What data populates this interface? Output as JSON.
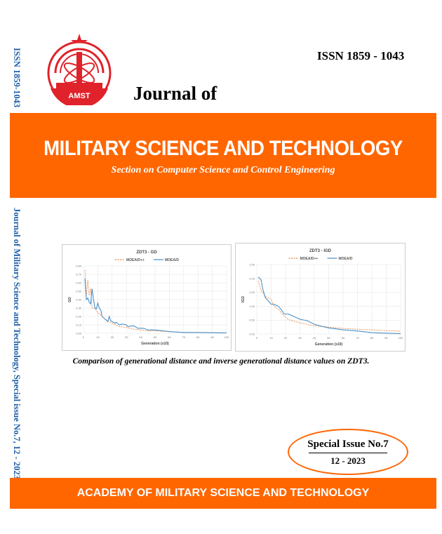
{
  "spine": {
    "issn": "ISSN 1859-1043",
    "title": "Journal of Military Science and Technology, Special issue No.7, 12 - 2023"
  },
  "logo": {
    "text": "AMST"
  },
  "header": {
    "issn": "ISSN 1859 - 1043",
    "journal_of": "Journal of"
  },
  "band": {
    "title": "MILITARY SCIENCE AND TECHNOLOGY",
    "section": "Section on Computer Science and Control Engineering"
  },
  "caption": "Comparison of generational distance and inverse generational distance values on ZDT3.",
  "issue": {
    "special": "Special Issue No.7",
    "date": "12 - 2023"
  },
  "footer": "ACADEMY OF MILITARY SCIENCE AND TECHNOLOGY",
  "colors": {
    "orange": "#ff6600",
    "blue": "#1f5fa8",
    "moead": "#4a90c8",
    "moeadpp": "#e8864a"
  },
  "chart_data": [
    {
      "type": "line",
      "title": "ZDT3 - GD",
      "xlabel": "Generation (x10)",
      "ylabel": "GD",
      "xlim": [
        0,
        100
      ],
      "ylim": [
        0,
        0.8
      ],
      "xticks": [
        0,
        10,
        20,
        30,
        40,
        50,
        60,
        70,
        80,
        90,
        100
      ],
      "yticks": [
        "0.00",
        "0.10",
        "0.20",
        "0.30",
        "0.40",
        "0.50",
        "0.60",
        "0.70",
        "0.80"
      ],
      "legend": "top",
      "series": [
        {
          "name": "MOEA/D++",
          "style": "dashed",
          "points": [
            [
              1,
              0.75
            ],
            [
              2,
              0.45
            ],
            [
              3,
              0.63
            ],
            [
              4,
              0.45
            ],
            [
              5,
              0.53
            ],
            [
              6,
              0.3
            ],
            [
              8,
              0.3
            ],
            [
              10,
              0.24
            ],
            [
              12,
              0.22
            ],
            [
              15,
              0.17
            ],
            [
              20,
              0.12
            ],
            [
              25,
              0.08
            ],
            [
              30,
              0.07
            ],
            [
              35,
              0.05
            ],
            [
              40,
              0.04
            ],
            [
              45,
              0.03
            ],
            [
              50,
              0.03
            ],
            [
              60,
              0.02
            ],
            [
              70,
              0.01
            ],
            [
              80,
              0.01
            ],
            [
              90,
              0.01
            ],
            [
              100,
              0.005
            ]
          ]
        },
        {
          "name": "MOEA/D",
          "style": "solid",
          "points": [
            [
              1,
              0.65
            ],
            [
              2,
              0.4
            ],
            [
              3,
              0.42
            ],
            [
              4,
              0.37
            ],
            [
              5,
              0.35
            ],
            [
              6,
              0.53
            ],
            [
              7,
              0.4
            ],
            [
              8,
              0.3
            ],
            [
              9,
              0.29
            ],
            [
              10,
              0.36
            ],
            [
              11,
              0.3
            ],
            [
              12,
              0.28
            ],
            [
              13,
              0.2
            ],
            [
              15,
              0.17
            ],
            [
              17,
              0.14
            ],
            [
              18,
              0.2
            ],
            [
              19,
              0.15
            ],
            [
              22,
              0.12
            ],
            [
              23,
              0.13
            ],
            [
              25,
              0.1
            ],
            [
              27,
              0.11
            ],
            [
              30,
              0.1
            ],
            [
              31,
              0.08
            ],
            [
              35,
              0.09
            ],
            [
              38,
              0.06
            ],
            [
              42,
              0.06
            ],
            [
              45,
              0.04
            ],
            [
              50,
              0.04
            ],
            [
              60,
              0.02
            ],
            [
              70,
              0.01
            ],
            [
              80,
              0.01
            ],
            [
              100,
              0.005
            ]
          ]
        }
      ]
    },
    {
      "type": "line",
      "title": "ZDT3 - IGD",
      "xlabel": "Generation (x10)",
      "ylabel": "IGD",
      "xlim": [
        0,
        100
      ],
      "ylim": [
        0,
        2.5
      ],
      "xticks": [
        0,
        10,
        20,
        30,
        40,
        50,
        60,
        70,
        80,
        90,
        100
      ],
      "yticks": [
        "0.00",
        "0.50",
        "1.00",
        "1.50",
        "2.00",
        "2.50"
      ],
      "legend": "top",
      "series": [
        {
          "name": "MOEA/D++",
          "style": "dashed",
          "points": [
            [
              1,
              1.9
            ],
            [
              3,
              1.55
            ],
            [
              5,
              1.45
            ],
            [
              6,
              1.35
            ],
            [
              10,
              1.25
            ],
            [
              12,
              1.0
            ],
            [
              15,
              0.9
            ],
            [
              18,
              0.7
            ],
            [
              22,
              0.52
            ],
            [
              30,
              0.4
            ],
            [
              37,
              0.32
            ],
            [
              45,
              0.27
            ],
            [
              50,
              0.25
            ],
            [
              60,
              0.2
            ],
            [
              70,
              0.17
            ],
            [
              80,
              0.15
            ],
            [
              90,
              0.12
            ],
            [
              100,
              0.1
            ]
          ]
        },
        {
          "name": "MOEA/D",
          "style": "solid",
          "points": [
            [
              1,
              2.05
            ],
            [
              3,
              1.95
            ],
            [
              4,
              1.65
            ],
            [
              6,
              1.3
            ],
            [
              8,
              1.2
            ],
            [
              10,
              1.07
            ],
            [
              12,
              1.07
            ],
            [
              15,
              1.0
            ],
            [
              17,
              0.88
            ],
            [
              19,
              0.72
            ],
            [
              22,
              0.72
            ],
            [
              25,
              0.65
            ],
            [
              30,
              0.53
            ],
            [
              35,
              0.48
            ],
            [
              40,
              0.35
            ],
            [
              45,
              0.28
            ],
            [
              50,
              0.22
            ],
            [
              60,
              0.15
            ],
            [
              70,
              0.11
            ],
            [
              80,
              0.05
            ],
            [
              90,
              0.03
            ],
            [
              100,
              0.01
            ]
          ]
        }
      ]
    }
  ]
}
